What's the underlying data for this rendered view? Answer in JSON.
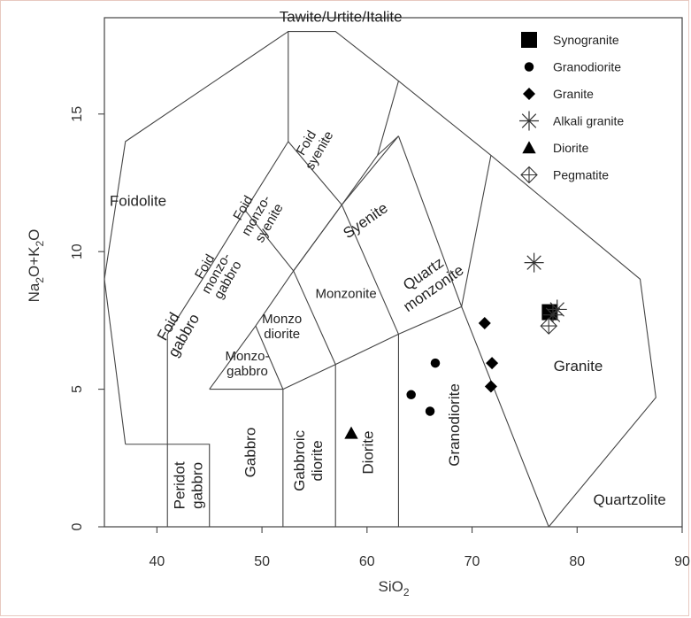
{
  "chart_data": {
    "type": "scatter",
    "title": "",
    "xlabel": "SiO",
    "xlabel_sub": "2",
    "ylabel": "Na",
    "ylabel_sub1": "2",
    "ylabel_mid": "O+K",
    "ylabel_sub2": "2",
    "ylabel_end": "O",
    "xlim": [
      35,
      90
    ],
    "ylim": [
      0,
      18.5
    ],
    "xticks": [
      40,
      50,
      60,
      70,
      80,
      90
    ],
    "yticks": [
      0,
      5,
      10,
      15
    ],
    "legend_position": "top-right",
    "series": [
      {
        "name": "Synogranite",
        "marker": "square",
        "points": [
          [
            77.4,
            7.8
          ]
        ]
      },
      {
        "name": "Granodiorite",
        "marker": "circle",
        "points": [
          [
            64.2,
            4.8
          ],
          [
            66.5,
            5.95
          ],
          [
            66.0,
            4.2
          ]
        ]
      },
      {
        "name": "Granite",
        "marker": "diamond",
        "points": [
          [
            71.2,
            7.4
          ],
          [
            71.9,
            5.95
          ],
          [
            71.8,
            5.1
          ]
        ]
      },
      {
        "name": "Alkali granite",
        "marker": "asterisk",
        "points": [
          [
            75.9,
            9.6
          ],
          [
            78.1,
            7.9
          ],
          [
            77.7,
            7.7
          ]
        ]
      },
      {
        "name": "Diorite",
        "marker": "triangle",
        "points": [
          [
            58.5,
            3.4
          ]
        ]
      },
      {
        "name": "Pegmatite",
        "marker": "diamond-plus",
        "points": [
          [
            77.3,
            7.3
          ]
        ]
      }
    ],
    "fields": [
      {
        "key": "foidolite",
        "lines": [
          "Foidolite"
        ]
      },
      {
        "key": "foid-gabbro",
        "lines": [
          "Foid",
          "gabbro"
        ]
      },
      {
        "key": "foid-monzogabbro",
        "lines": [
          "Foid",
          "monzo-",
          "gabbro"
        ]
      },
      {
        "key": "foid-monzosyenite",
        "lines": [
          "Foid",
          "monzo-",
          "syenite"
        ]
      },
      {
        "key": "foid-syenite",
        "lines": [
          "Foid",
          "syenite"
        ]
      },
      {
        "key": "syenite",
        "lines": [
          "Syenite"
        ]
      },
      {
        "key": "quartz-monzonite",
        "lines": [
          "Quartz",
          "monzonite"
        ]
      },
      {
        "key": "monzonite",
        "lines": [
          "Monzonite"
        ]
      },
      {
        "key": "monzodiorite",
        "lines": [
          "Monzo",
          "diorite"
        ]
      },
      {
        "key": "monzogabbro",
        "lines": [
          "Monzo-",
          "gabbro"
        ]
      },
      {
        "key": "peridot-gabbro",
        "lines": [
          "Peridot",
          "gabbro"
        ]
      },
      {
        "key": "gabbro",
        "lines": [
          "Gabbro"
        ]
      },
      {
        "key": "gabbroic-diorite",
        "lines": [
          "Gabbroic",
          "diorite"
        ]
      },
      {
        "key": "diorite",
        "lines": [
          "Diorite"
        ]
      },
      {
        "key": "granodiorite",
        "lines": [
          "Granodiorite"
        ]
      },
      {
        "key": "granite",
        "lines": [
          "Granite"
        ]
      },
      {
        "key": "quartzolite",
        "lines": [
          "Quartzolite"
        ]
      },
      {
        "key": "tawite",
        "lines": [
          "Tawite/Urtite/Italite"
        ]
      }
    ]
  }
}
